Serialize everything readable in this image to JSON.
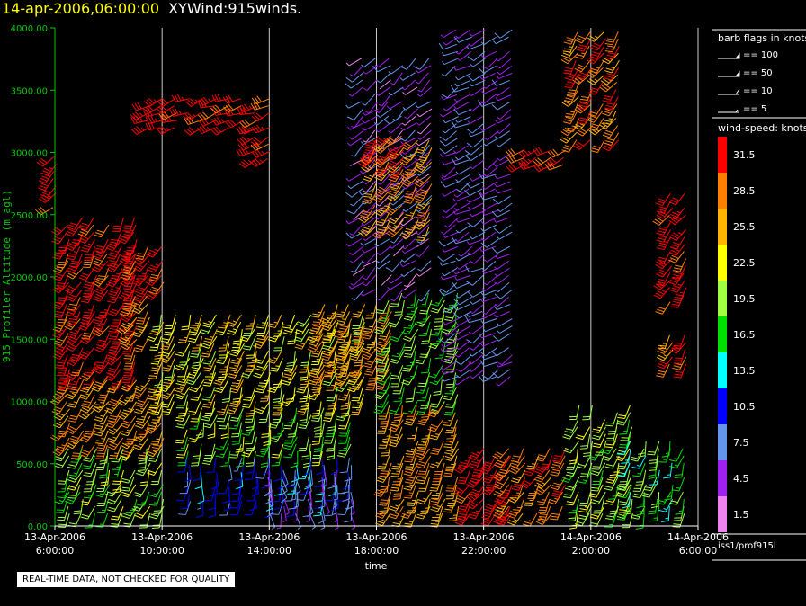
{
  "header": {
    "timestamp": "14-apr-2006,06:00:00",
    "title": "XYWind:915winds."
  },
  "quality_notice": "REAL-TIME DATA, NOT CHECKED FOR QUALITY",
  "site_label": "iss1/prof915l",
  "colors": {
    "axis_y": "#00c800",
    "grid": "#c8c8c8",
    "header_timestamp": "#ffff00"
  },
  "legend": {
    "barb_title": "barb flags in knots",
    "barbs": [
      {
        "label": "== 100",
        "kind": "flag"
      },
      {
        "label": "== 50",
        "kind": "flag"
      },
      {
        "label": "== 10",
        "kind": "full"
      },
      {
        "label": "== 5",
        "kind": "half"
      }
    ],
    "speed_title": "wind-speed: knots",
    "speed_bins": [
      {
        "label": "31.5",
        "color": "#ff0000"
      },
      {
        "label": "28.5",
        "color": "#ff8000"
      },
      {
        "label": "25.5",
        "color": "#ffb400"
      },
      {
        "label": "22.5",
        "color": "#ffff00"
      },
      {
        "label": "19.5",
        "color": "#a0ff40"
      },
      {
        "label": "16.5",
        "color": "#00e000"
      },
      {
        "label": "13.5",
        "color": "#00ffff"
      },
      {
        "label": "10.5",
        "color": "#0000ff"
      },
      {
        "label": "7.5",
        "color": "#6495ed"
      },
      {
        "label": "4.5",
        "color": "#a020f0"
      },
      {
        "label": "1.5",
        "color": "#ee82ee"
      }
    ]
  },
  "chart_data": {
    "type": "scatter",
    "subtype": "wind-barb time-height",
    "xlabel": "time",
    "ylabel": "915 Profiler Altitude (m agl)",
    "xlim_hours": [
      0,
      24
    ],
    "ylim": [
      0,
      4000
    ],
    "x_ticks": [
      {
        "hours": 0,
        "date": "13-Apr-2006",
        "time": "6:00:00"
      },
      {
        "hours": 4,
        "date": "13-Apr-2006",
        "time": "10:00:00"
      },
      {
        "hours": 8,
        "date": "13-Apr-2006",
        "time": "14:00:00"
      },
      {
        "hours": 12,
        "date": "13-Apr-2006",
        "time": "18:00:00"
      },
      {
        "hours": 16,
        "date": "13-Apr-2006",
        "time": "22:00:00"
      },
      {
        "hours": 20,
        "date": "14-Apr-2006",
        "time": "2:00:00"
      },
      {
        "hours": 24,
        "date": "14-Apr-2006",
        "time": "6:00:00"
      }
    ],
    "y_ticks": [
      "0.00",
      "500.00",
      "1000.00",
      "1500.00",
      "2000.00",
      "2500.00",
      "3000.00",
      "3500.00",
      "4000.00"
    ],
    "y_tick_values": [
      0,
      500,
      1000,
      1500,
      2000,
      2500,
      3000,
      3500,
      4000
    ],
    "grid": "vertical lines at x ticks",
    "profile_times_hours": [
      0.0,
      0.5,
      1.0,
      1.5,
      2.0,
      2.5,
      3.0,
      3.5,
      4.0,
      4.5,
      5.0,
      5.5,
      6.0,
      6.5,
      7.0,
      7.5,
      8.0,
      8.5,
      9.0,
      9.5,
      10.0,
      10.5,
      11.0,
      11.5,
      12.0,
      12.5,
      13.0,
      13.5,
      14.0,
      14.5,
      15.0,
      15.5,
      16.0,
      16.5,
      17.0,
      17.5,
      18.0,
      18.5,
      19.0,
      19.5,
      20.0,
      20.5,
      21.0,
      21.5,
      22.0,
      22.5,
      23.0,
      23.5
    ],
    "segments": [
      {
        "t0": 0.0,
        "t1": 0.2,
        "h0": 2500,
        "h1": 3000,
        "dir": 225,
        "spd": 32
      },
      {
        "t0": 0.3,
        "t1": 3.0,
        "h0": 1200,
        "h1": 2500,
        "dir": 210,
        "spd": 32
      },
      {
        "t0": 0.3,
        "t1": 4.0,
        "h0": 650,
        "h1": 1200,
        "dir": 210,
        "spd": 27
      },
      {
        "t0": 0.3,
        "t1": 4.0,
        "h0": 100,
        "h1": 650,
        "dir": 200,
        "spd": 19
      },
      {
        "t0": 3.0,
        "t1": 4.0,
        "h0": 1900,
        "h1": 2300,
        "dir": 210,
        "spd": 32
      },
      {
        "t0": 3.0,
        "t1": 3.6,
        "h0": 1500,
        "h1": 1900,
        "dir": 215,
        "spd": 27
      },
      {
        "t0": 3.5,
        "t1": 8.0,
        "h0": 3200,
        "h1": 3450,
        "dir": 250,
        "spd": 32
      },
      {
        "t0": 7.5,
        "t1": 8.0,
        "h0": 2950,
        "h1": 3200,
        "dir": 240,
        "spd": 32
      },
      {
        "t0": 4.0,
        "t1": 11.5,
        "h0": 1000,
        "h1": 1700,
        "dir": 200,
        "spd": 23
      },
      {
        "t0": 5.0,
        "t1": 11.0,
        "h0": 600,
        "h1": 1000,
        "dir": 195,
        "spd": 19
      },
      {
        "t0": 5.0,
        "t1": 11.0,
        "h0": 200,
        "h1": 600,
        "dir": 185,
        "spd": 10
      },
      {
        "t0": 8.0,
        "t1": 11.0,
        "h0": 100,
        "h1": 450,
        "dir": 170,
        "spd": 6
      },
      {
        "t0": 10.0,
        "t1": 12.5,
        "h0": 1200,
        "h1": 1800,
        "dir": 205,
        "spd": 27
      },
      {
        "t0": 11.5,
        "t1": 14.0,
        "h0": 1900,
        "h1": 3800,
        "dir": 230,
        "spd": 5
      },
      {
        "t0": 12.0,
        "t1": 14.0,
        "h0": 2400,
        "h1": 3150,
        "dir": 215,
        "spd": 27
      },
      {
        "t0": 12.0,
        "t1": 13.0,
        "h0": 2900,
        "h1": 3150,
        "dir": 220,
        "spd": 32
      },
      {
        "t0": 12.5,
        "t1": 15.0,
        "h0": 1000,
        "h1": 1900,
        "dir": 200,
        "spd": 18
      },
      {
        "t0": 12.5,
        "t1": 15.0,
        "h0": 100,
        "h1": 1000,
        "dir": 200,
        "spd": 27
      },
      {
        "t0": 15.0,
        "t1": 17.0,
        "h0": 1200,
        "h1": 4000,
        "dir": 240,
        "spd": 6
      },
      {
        "t0": 15.5,
        "t1": 17.0,
        "h0": 100,
        "h1": 650,
        "dir": 215,
        "spd": 32
      },
      {
        "t0": 17.0,
        "t1": 19.0,
        "h0": 100,
        "h1": 650,
        "dir": 210,
        "spd": 29
      },
      {
        "t0": 17.5,
        "t1": 19.0,
        "h0": 2900,
        "h1": 3050,
        "dir": 240,
        "spd": 30
      },
      {
        "t0": 19.5,
        "t1": 21.0,
        "h0": 3100,
        "h1": 4000,
        "dir": 215,
        "spd": 29
      },
      {
        "t0": 19.5,
        "t1": 21.5,
        "h0": 100,
        "h1": 1000,
        "dir": 200,
        "spd": 20
      },
      {
        "t0": 21.5,
        "t1": 23.5,
        "h0": 100,
        "h1": 700,
        "dir": 195,
        "spd": 17
      },
      {
        "t0": 23.0,
        "t1": 23.5,
        "h0": 1800,
        "h1": 2700,
        "dir": 215,
        "spd": 32
      },
      {
        "t0": 23.0,
        "t1": 23.5,
        "h0": 1300,
        "h1": 1550,
        "dir": 210,
        "spd": 29
      }
    ]
  }
}
